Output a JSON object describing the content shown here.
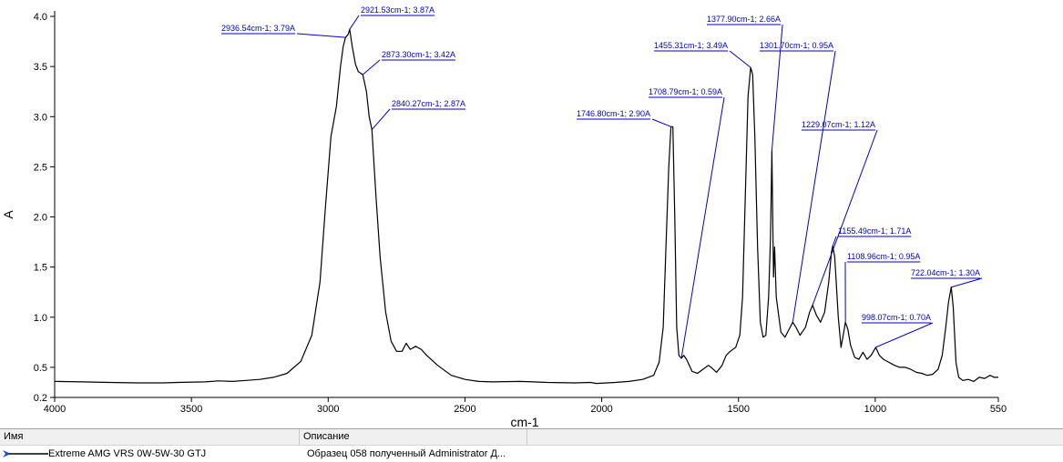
{
  "chart_data": {
    "type": "line",
    "xlabel": "cm-1",
    "ylabel": "A",
    "x_reversed": true,
    "xlim": [
      4000,
      550
    ],
    "ylim": [
      0.2,
      4.0
    ],
    "x_ticks": [
      4000,
      3500,
      3000,
      2500,
      2000,
      1500,
      1000,
      550
    ],
    "y_ticks": [
      {
        "value": 0.2,
        "label": "0.2"
      },
      {
        "value": 0.5,
        "label": "0.5"
      },
      {
        "value": 1.0,
        "label": "1.0"
      },
      {
        "value": 1.5,
        "label": "1.5"
      },
      {
        "value": 2.0,
        "label": "2.0"
      },
      {
        "value": 2.5,
        "label": "2.5"
      },
      {
        "value": 3.0,
        "label": "3.0"
      },
      {
        "value": 3.5,
        "label": "3.5"
      },
      {
        "value": 4.0,
        "label": "4.0"
      }
    ],
    "grid": false,
    "series": [
      {
        "name": "Extreme AMG VRS 0W-5W-30 GTJ",
        "color": "#000000",
        "points": [
          [
            4000,
            0.36
          ],
          [
            3900,
            0.355
          ],
          [
            3800,
            0.35
          ],
          [
            3700,
            0.345
          ],
          [
            3600,
            0.345
          ],
          [
            3550,
            0.35
          ],
          [
            3450,
            0.355
          ],
          [
            3400,
            0.365
          ],
          [
            3350,
            0.36
          ],
          [
            3300,
            0.37
          ],
          [
            3250,
            0.38
          ],
          [
            3200,
            0.4
          ],
          [
            3150,
            0.44
          ],
          [
            3100,
            0.56
          ],
          [
            3060,
            0.82
          ],
          [
            3030,
            1.35
          ],
          [
            3010,
            2.1
          ],
          [
            2990,
            2.8
          ],
          [
            2970,
            3.1
          ],
          [
            2955,
            3.5
          ],
          [
            2945,
            3.7
          ],
          [
            2936.54,
            3.79
          ],
          [
            2927,
            3.82
          ],
          [
            2921.53,
            3.87
          ],
          [
            2912,
            3.7
          ],
          [
            2900,
            3.52
          ],
          [
            2890,
            3.45
          ],
          [
            2880,
            3.43
          ],
          [
            2873.3,
            3.42
          ],
          [
            2860,
            3.25
          ],
          [
            2850,
            3.0
          ],
          [
            2840.27,
            2.87
          ],
          [
            2825,
            2.2
          ],
          [
            2810,
            1.6
          ],
          [
            2790,
            1.05
          ],
          [
            2770,
            0.76
          ],
          [
            2750,
            0.66
          ],
          [
            2730,
            0.66
          ],
          [
            2715,
            0.74
          ],
          [
            2700,
            0.68
          ],
          [
            2680,
            0.71
          ],
          [
            2660,
            0.68
          ],
          [
            2640,
            0.62
          ],
          [
            2600,
            0.52
          ],
          [
            2550,
            0.42
          ],
          [
            2500,
            0.38
          ],
          [
            2450,
            0.36
          ],
          [
            2400,
            0.355
          ],
          [
            2300,
            0.36
          ],
          [
            2250,
            0.355
          ],
          [
            2200,
            0.35
          ],
          [
            2100,
            0.345
          ],
          [
            2040,
            0.35
          ],
          [
            2020,
            0.34
          ],
          [
            1950,
            0.35
          ],
          [
            1900,
            0.36
          ],
          [
            1850,
            0.38
          ],
          [
            1810,
            0.42
          ],
          [
            1790,
            0.55
          ],
          [
            1775,
            0.9
          ],
          [
            1765,
            1.7
          ],
          [
            1755,
            2.5
          ],
          [
            1746.8,
            2.9
          ],
          [
            1740,
            2.9
          ],
          [
            1733,
            2.0
          ],
          [
            1726,
            0.9
          ],
          [
            1718,
            0.62
          ],
          [
            1708.79,
            0.59
          ],
          [
            1700,
            0.62
          ],
          [
            1690,
            0.58
          ],
          [
            1670,
            0.46
          ],
          [
            1650,
            0.44
          ],
          [
            1630,
            0.48
          ],
          [
            1610,
            0.52
          ],
          [
            1600,
            0.5
          ],
          [
            1580,
            0.45
          ],
          [
            1560,
            0.52
          ],
          [
            1545,
            0.62
          ],
          [
            1530,
            0.66
          ],
          [
            1510,
            0.7
          ],
          [
            1495,
            0.82
          ],
          [
            1485,
            1.2
          ],
          [
            1475,
            2.2
          ],
          [
            1465,
            3.2
          ],
          [
            1455.31,
            3.49
          ],
          [
            1448,
            3.42
          ],
          [
            1440,
            2.8
          ],
          [
            1430,
            1.7
          ],
          [
            1420,
            0.95
          ],
          [
            1410,
            0.8
          ],
          [
            1400,
            0.82
          ],
          [
            1390,
            1.2
          ],
          [
            1383,
            1.8
          ],
          [
            1377.9,
            2.66
          ],
          [
            1372,
            1.4
          ],
          [
            1368,
            1.7
          ],
          [
            1362,
            1.2
          ],
          [
            1345,
            0.85
          ],
          [
            1330,
            0.8
          ],
          [
            1315,
            0.88
          ],
          [
            1301.7,
            0.95
          ],
          [
            1290,
            0.9
          ],
          [
            1275,
            0.82
          ],
          [
            1255,
            0.9
          ],
          [
            1240,
            1.05
          ],
          [
            1229.07,
            1.12
          ],
          [
            1215,
            1.02
          ],
          [
            1200,
            0.95
          ],
          [
            1185,
            1.05
          ],
          [
            1170,
            1.35
          ],
          [
            1160,
            1.65
          ],
          [
            1155.49,
            1.71
          ],
          [
            1148,
            1.6
          ],
          [
            1135,
            1.0
          ],
          [
            1125,
            0.7
          ],
          [
            1115,
            0.85
          ],
          [
            1108.96,
            0.95
          ],
          [
            1100,
            0.88
          ],
          [
            1090,
            0.72
          ],
          [
            1075,
            0.6
          ],
          [
            1060,
            0.58
          ],
          [
            1045,
            0.65
          ],
          [
            1030,
            0.58
          ],
          [
            1015,
            0.62
          ],
          [
            998.07,
            0.7
          ],
          [
            985,
            0.62
          ],
          [
            970,
            0.58
          ],
          [
            950,
            0.55
          ],
          [
            930,
            0.52
          ],
          [
            910,
            0.5
          ],
          [
            890,
            0.5
          ],
          [
            870,
            0.48
          ],
          [
            850,
            0.45
          ],
          [
            830,
            0.44
          ],
          [
            810,
            0.42
          ],
          [
            790,
            0.43
          ],
          [
            770,
            0.48
          ],
          [
            755,
            0.62
          ],
          [
            742,
            0.9
          ],
          [
            732,
            1.15
          ],
          [
            722.04,
            1.3
          ],
          [
            715,
            1.1
          ],
          [
            705,
            0.55
          ],
          [
            695,
            0.4
          ],
          [
            680,
            0.37
          ],
          [
            660,
            0.38
          ],
          [
            640,
            0.36
          ],
          [
            620,
            0.4
          ],
          [
            600,
            0.39
          ],
          [
            580,
            0.42
          ],
          [
            565,
            0.4
          ],
          [
            550,
            0.4
          ]
        ]
      }
    ],
    "annotations": [
      {
        "x": 2936.54,
        "y": 3.79,
        "text": "2936.54cm-1; 3.79A"
      },
      {
        "x": 2921.53,
        "y": 3.87,
        "text": "2921.53cm-1; 3.87A"
      },
      {
        "x": 2873.3,
        "y": 3.42,
        "text": "2873.30cm-1; 3.42A"
      },
      {
        "x": 2840.27,
        "y": 2.87,
        "text": "2840.27cm-1; 2.87A"
      },
      {
        "x": 1746.8,
        "y": 2.9,
        "text": "1746.80cm-1; 2.90A"
      },
      {
        "x": 1708.79,
        "y": 0.59,
        "text": "1708.79cm-1; 0.59A"
      },
      {
        "x": 1455.31,
        "y": 3.49,
        "text": "1455.31cm-1; 3.49A"
      },
      {
        "x": 1377.9,
        "y": 2.66,
        "text": "1377.90cm-1; 2.66A"
      },
      {
        "x": 1301.7,
        "y": 0.95,
        "text": "1301.70cm-1; 0.95A"
      },
      {
        "x": 1229.07,
        "y": 1.12,
        "text": "1229.07cm-1; 1.12A"
      },
      {
        "x": 1155.49,
        "y": 1.71,
        "text": "1155.49cm-1; 1.71A"
      },
      {
        "x": 1108.96,
        "y": 0.95,
        "text": "1108.96cm-1; 0.95A"
      },
      {
        "x": 998.07,
        "y": 0.7,
        "text": "998.07cm-1; 0.70A"
      },
      {
        "x": 722.04,
        "y": 1.3,
        "text": "722.04cm-1; 1.30A"
      }
    ],
    "annotation_color": "#0000cc"
  },
  "legend": {
    "col_name": "Имя",
    "col_desc": "Описание",
    "row": {
      "name": "Extreme AMG VRS 0W-5W-30 GTJ",
      "desc": "Образец 058 полученный Administrator Д..."
    }
  }
}
